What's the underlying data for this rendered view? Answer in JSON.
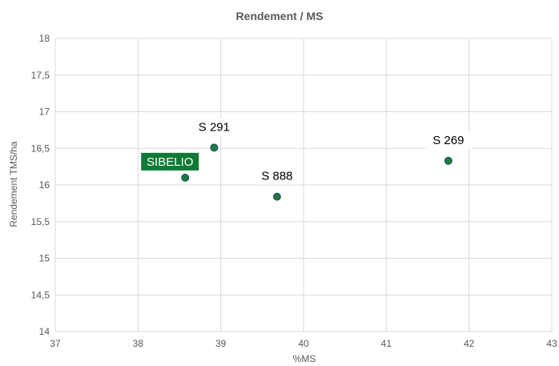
{
  "chart_data": {
    "type": "scatter",
    "title": "Rendement / MS",
    "xlabel": "%MS",
    "ylabel": "Rendement TMS/ha",
    "xlim": [
      37,
      43
    ],
    "ylim": [
      14,
      18
    ],
    "x_ticks": [
      "37",
      "38",
      "39",
      "40",
      "41",
      "42",
      "43"
    ],
    "y_ticks": [
      "14",
      "14,5",
      "15",
      "15,5",
      "16",
      "16,5",
      "17",
      "17,5",
      "18"
    ],
    "grid": true,
    "points": [
      {
        "label": "SIBELIO",
        "x": 38.57,
        "y": 16.1,
        "highlight": true
      },
      {
        "label": "S 291",
        "x": 38.92,
        "y": 16.51,
        "highlight": false
      },
      {
        "label": "S 888",
        "x": 39.68,
        "y": 15.84,
        "highlight": false
      },
      {
        "label": "S 269",
        "x": 41.75,
        "y": 16.33,
        "highlight": false
      }
    ],
    "colors": {
      "marker": "#1e7b3c",
      "marker_edge": "#1f4e79",
      "highlight_bg": "#0e7a35",
      "grid": "#d9d9d9",
      "text": "#595959"
    }
  }
}
